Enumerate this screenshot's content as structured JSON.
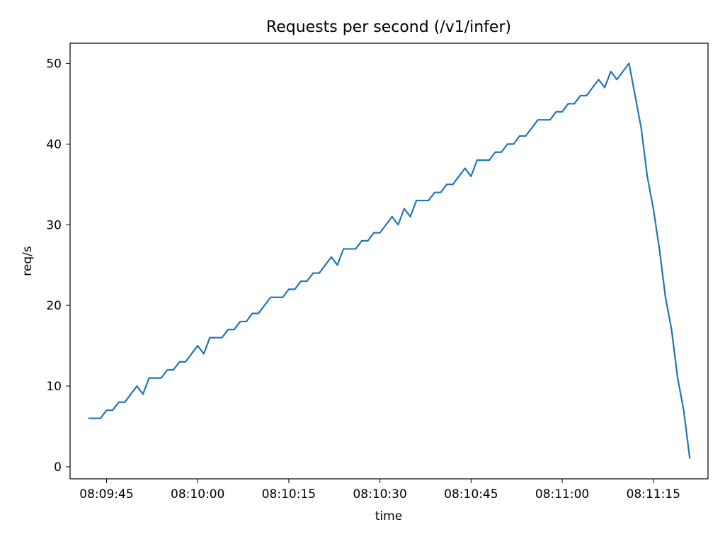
{
  "chart_data": {
    "type": "line",
    "title": "Requests per second (/v1/infer)",
    "xlabel": "time",
    "ylabel": "req/s",
    "xlim": [
      "08:09:39",
      "08:11:24"
    ],
    "ylim": [
      -1.5,
      52.5
    ],
    "grid": false,
    "x_ticks": [
      "08:09:45",
      "08:10:00",
      "08:10:15",
      "08:10:30",
      "08:10:45",
      "08:11:00",
      "08:11:15"
    ],
    "y_ticks": [
      0,
      10,
      20,
      30,
      40,
      50
    ],
    "colors": {
      "line": "#1f77b4"
    },
    "series": [
      {
        "x": [
          "08:09:42",
          "08:09:43",
          "08:09:44",
          "08:09:45",
          "08:09:46",
          "08:09:47",
          "08:09:48",
          "08:09:49",
          "08:09:50",
          "08:09:51",
          "08:09:52",
          "08:09:53",
          "08:09:54",
          "08:09:55",
          "08:09:56",
          "08:09:57",
          "08:09:58",
          "08:09:59",
          "08:10:00",
          "08:10:01",
          "08:10:02",
          "08:10:03",
          "08:10:04",
          "08:10:05",
          "08:10:06",
          "08:10:07",
          "08:10:08",
          "08:10:09",
          "08:10:10",
          "08:10:11",
          "08:10:12",
          "08:10:13",
          "08:10:14",
          "08:10:15",
          "08:10:16",
          "08:10:17",
          "08:10:18",
          "08:10:19",
          "08:10:20",
          "08:10:21",
          "08:10:22",
          "08:10:23",
          "08:10:24",
          "08:10:25",
          "08:10:26",
          "08:10:27",
          "08:10:28",
          "08:10:29",
          "08:10:30",
          "08:10:31",
          "08:10:32",
          "08:10:33",
          "08:10:34",
          "08:10:35",
          "08:10:36",
          "08:10:37",
          "08:10:38",
          "08:10:39",
          "08:10:40",
          "08:10:41",
          "08:10:42",
          "08:10:43",
          "08:10:44",
          "08:10:45",
          "08:10:46",
          "08:10:47",
          "08:10:48",
          "08:10:49",
          "08:10:50",
          "08:10:51",
          "08:10:52",
          "08:10:53",
          "08:10:54",
          "08:10:55",
          "08:10:56",
          "08:10:57",
          "08:10:58",
          "08:10:59",
          "08:11:00",
          "08:11:01",
          "08:11:02",
          "08:11:03",
          "08:11:04",
          "08:11:05",
          "08:11:06",
          "08:11:07",
          "08:11:08",
          "08:11:09",
          "08:11:10",
          "08:11:11",
          "08:11:12",
          "08:11:13",
          "08:11:14",
          "08:11:15",
          "08:11:16",
          "08:11:17",
          "08:11:18",
          "08:11:19",
          "08:11:20",
          "08:11:21"
        ],
        "values": [
          6,
          6,
          6,
          7,
          7,
          8,
          8,
          9,
          10,
          9,
          11,
          11,
          11,
          12,
          12,
          13,
          13,
          14,
          15,
          14,
          16,
          16,
          16,
          17,
          17,
          18,
          18,
          19,
          19,
          20,
          21,
          21,
          21,
          22,
          22,
          23,
          23,
          24,
          24,
          25,
          26,
          25,
          27,
          27,
          27,
          28,
          28,
          29,
          29,
          30,
          31,
          30,
          32,
          31,
          33,
          33,
          33,
          34,
          34,
          35,
          35,
          36,
          37,
          36,
          38,
          38,
          38,
          39,
          39,
          40,
          40,
          41,
          41,
          42,
          43,
          43,
          43,
          44,
          44,
          45,
          45,
          46,
          46,
          47,
          48,
          47,
          49,
          48,
          49,
          50,
          46,
          42,
          36,
          32,
          27,
          21,
          17,
          11,
          7,
          1
        ]
      }
    ]
  }
}
